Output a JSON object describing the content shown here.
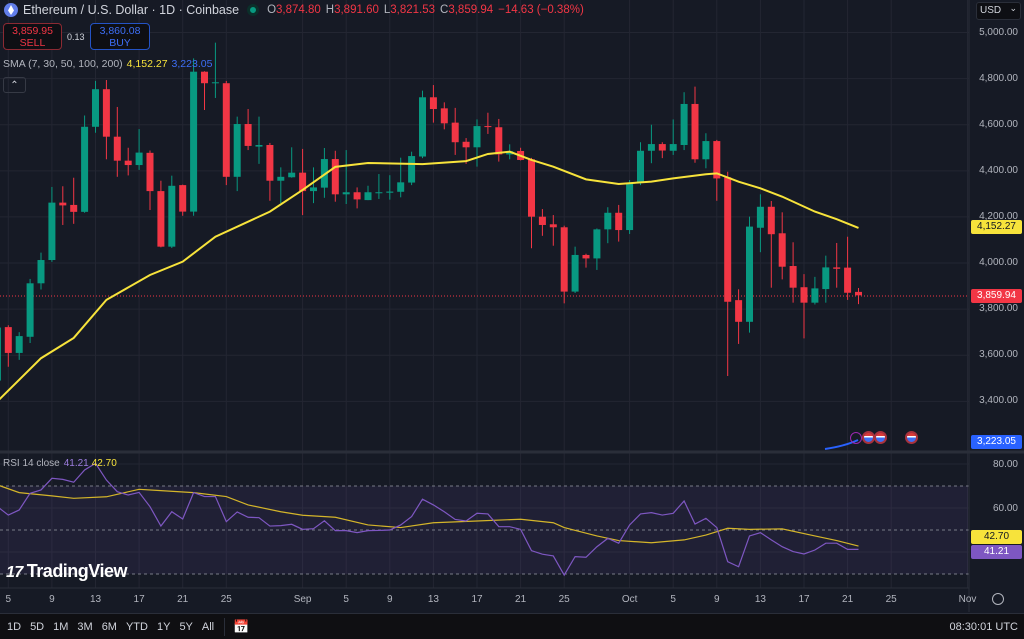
{
  "header": {
    "title": "Ethereum / U.S. Dollar · 1D · Coinbase",
    "open_label": "O",
    "open": "3,874.80",
    "high_label": "H",
    "high": "3,891.60",
    "low_label": "L",
    "low": "3,821.53",
    "close_label": "C",
    "close": "3,859.94",
    "change": "−14.63 (−0.38%)"
  },
  "trade": {
    "sell_price": "3,859.95",
    "sell_label": "SELL",
    "spread": "0.13",
    "buy_price": "3,860.08",
    "buy_label": "BUY"
  },
  "sma_legend": {
    "label": "SMA (7, 30, 50, 100, 200)",
    "value1": "4,152.27",
    "value2": "3,223.05"
  },
  "rsi_legend": {
    "label": "RSI 14 close",
    "rsi": "41.21",
    "ma": "42.70"
  },
  "currency": "USD",
  "price_axis": [
    "5,000.00",
    "4,800.00",
    "4,600.00",
    "4,400.00",
    "4,200.00",
    "4,000.00",
    "3,800.00",
    "3,600.00",
    "3,400.00"
  ],
  "price_tags": {
    "sma": "4,152.27",
    "last": "3,859.94",
    "sma200": "3,223.05"
  },
  "rsi_axis": [
    "80.00",
    "60.00"
  ],
  "rsi_tags": {
    "ma": "42.70",
    "rsi": "41.21"
  },
  "watermark": "TradingView",
  "toolbar": {
    "ranges": [
      "1D",
      "5D",
      "1M",
      "3M",
      "6M",
      "YTD",
      "1Y",
      "5Y",
      "All"
    ],
    "time": "08:30:01 UTC"
  },
  "colors": {
    "up": "#089981",
    "down": "#f23645",
    "sma": "#f7e33b",
    "sma200": "#2962ff",
    "rsi": "#7e57c2",
    "rsi_ma": "#d4b52a"
  },
  "chart_data": [
    {
      "type": "candlestick",
      "ylim": [
        3300,
        5050
      ],
      "time_labels": [
        [
          "5",
          "Aug 5"
        ],
        [
          "9",
          "Aug 9"
        ],
        [
          "13",
          "Aug 13"
        ],
        [
          "17",
          "Aug 17"
        ],
        [
          "21",
          "Aug 21"
        ],
        [
          "25",
          "Aug 25"
        ],
        [
          "Sep",
          "Sep 1"
        ],
        [
          "5",
          "Sep 5"
        ],
        [
          "9",
          "Sep 9"
        ],
        [
          "13",
          "Sep 13"
        ],
        [
          "17",
          "Sep 17"
        ],
        [
          "21",
          "Sep 21"
        ],
        [
          "25",
          "Sep 25"
        ],
        [
          "Oct",
          "Oct 1"
        ],
        [
          "5",
          "Oct 5"
        ],
        [
          "9",
          "Oct 9"
        ],
        [
          "13",
          "Oct 13"
        ],
        [
          "17",
          "Oct 17"
        ],
        [
          "21",
          "Oct 21"
        ],
        [
          "25",
          "Oct 25"
        ],
        [
          "Nov",
          "Nov 1"
        ]
      ],
      "candles": [
        [
          "Aug 4",
          3490,
          3725,
          3480,
          3720
        ],
        [
          "Aug 5",
          3722,
          3730,
          3550,
          3610
        ],
        [
          "Aug 6",
          3610,
          3700,
          3580,
          3683
        ],
        [
          "Aug 7",
          3680,
          3931,
          3653,
          3912
        ],
        [
          "Aug 8",
          3912,
          4045,
          3885,
          4013
        ],
        [
          "Aug 9",
          4013,
          4330,
          4005,
          4262
        ],
        [
          "Aug 10",
          4262,
          4333,
          4165,
          4250
        ],
        [
          "Aug 11",
          4252,
          4370,
          4170,
          4222
        ],
        [
          "Aug 12",
          4222,
          4640,
          4218,
          4591
        ],
        [
          "Aug 13",
          4591,
          4790,
          4565,
          4754
        ],
        [
          "Aug 14",
          4754,
          4794,
          4450,
          4548
        ],
        [
          "Aug 15",
          4548,
          4677,
          4374,
          4444
        ],
        [
          "Aug 16",
          4444,
          4500,
          4380,
          4425
        ],
        [
          "Aug 17",
          4425,
          4581,
          4404,
          4479
        ],
        [
          "Aug 18",
          4478,
          4488,
          4230,
          4312
        ],
        [
          "Aug 19",
          4312,
          4357,
          4068,
          4071
        ],
        [
          "Aug 20",
          4071,
          4379,
          4065,
          4335
        ],
        [
          "Aug 21",
          4338,
          4340,
          4205,
          4223
        ],
        [
          "Aug 22",
          4223,
          4888,
          4205,
          4830
        ],
        [
          "Aug 23",
          4830,
          4832,
          4664,
          4780
        ],
        [
          "Aug 24",
          4780,
          4956,
          4716,
          4784
        ],
        [
          "Aug 25",
          4780,
          4790,
          4338,
          4374
        ],
        [
          "Aug 26",
          4374,
          4635,
          4312,
          4603
        ],
        [
          "Aug 27",
          4603,
          4668,
          4490,
          4508
        ],
        [
          "Aug 28",
          4505,
          4635,
          4430,
          4512
        ],
        [
          "Aug 29",
          4512,
          4521,
          4270,
          4357
        ],
        [
          "Aug 30",
          4357,
          4415,
          4260,
          4374
        ],
        [
          "Aug 31",
          4372,
          4502,
          4370,
          4392
        ],
        [
          "Sep 1",
          4392,
          4495,
          4208,
          4312
        ],
        [
          "Sep 2",
          4312,
          4415,
          4260,
          4328
        ],
        [
          "Sep 3",
          4327,
          4499,
          4283,
          4451
        ],
        [
          "Sep 4",
          4451,
          4487,
          4266,
          4298
        ],
        [
          "Sep 5",
          4298,
          4490,
          4256,
          4307
        ],
        [
          "Sep 6",
          4307,
          4328,
          4237,
          4276
        ],
        [
          "Sep 7",
          4273,
          4335,
          4273,
          4307
        ],
        [
          "Sep 8",
          4303,
          4386,
          4278,
          4307
        ],
        [
          "Sep 9",
          4305,
          4381,
          4275,
          4310
        ],
        [
          "Sep 10",
          4309,
          4457,
          4285,
          4350
        ],
        [
          "Sep 11",
          4349,
          4483,
          4338,
          4464
        ],
        [
          "Sep 12",
          4462,
          4748,
          4455,
          4719
        ],
        [
          "Sep 13",
          4719,
          4772,
          4609,
          4668
        ],
        [
          "Sep 14",
          4671,
          4697,
          4580,
          4606
        ],
        [
          "Sep 15",
          4609,
          4673,
          4469,
          4524
        ],
        [
          "Sep 16",
          4526,
          4542,
          4430,
          4502
        ],
        [
          "Sep 17",
          4502,
          4623,
          4418,
          4594
        ],
        [
          "Sep 18",
          4594,
          4652,
          4560,
          4590
        ],
        [
          "Sep 19",
          4589,
          4625,
          4440,
          4471
        ],
        [
          "Sep 20",
          4471,
          4515,
          4450,
          4485
        ],
        [
          "Sep 21",
          4486,
          4500,
          4445,
          4447
        ],
        [
          "Sep 22",
          4450,
          4456,
          4064,
          4201
        ],
        [
          "Sep 23",
          4201,
          4234,
          4118,
          4165
        ],
        [
          "Sep 24",
          4168,
          4208,
          4075,
          4155
        ],
        [
          "Sep 25",
          4155,
          4162,
          3825,
          3876
        ],
        [
          "Sep 26",
          3876,
          4071,
          3870,
          4035
        ],
        [
          "Sep 27",
          4035,
          4040,
          3980,
          4020
        ],
        [
          "Sep 28",
          4020,
          4150,
          3970,
          4146
        ],
        [
          "Sep 29",
          4146,
          4242,
          4086,
          4218
        ],
        [
          "Sep 30",
          4218,
          4252,
          4093,
          4143
        ],
        [
          "Oct 1",
          4143,
          4360,
          4126,
          4348
        ],
        [
          "Oct 2",
          4348,
          4524,
          4338,
          4487
        ],
        [
          "Oct 3",
          4487,
          4600,
          4433,
          4516
        ],
        [
          "Oct 4",
          4516,
          4524,
          4455,
          4488
        ],
        [
          "Oct 5",
          4487,
          4623,
          4469,
          4516
        ],
        [
          "Oct 6",
          4512,
          4741,
          4490,
          4690
        ],
        [
          "Oct 7",
          4690,
          4765,
          4435,
          4450
        ],
        [
          "Oct 8",
          4450,
          4563,
          4411,
          4529
        ],
        [
          "Oct 9",
          4529,
          4534,
          4270,
          4367
        ],
        [
          "Oct 10",
          4372,
          4396,
          3510,
          3832
        ],
        [
          "Oct 11",
          3839,
          3886,
          3649,
          3745
        ],
        [
          "Oct 12",
          3745,
          4201,
          3698,
          4158
        ],
        [
          "Oct 13",
          4153,
          4298,
          4047,
          4244
        ],
        [
          "Oct 14",
          4244,
          4269,
          3893,
          4125
        ],
        [
          "Oct 15",
          4129,
          4220,
          3929,
          3984
        ],
        [
          "Oct 16",
          3987,
          4090,
          3828,
          3893
        ],
        [
          "Oct 17",
          3895,
          3952,
          3673,
          3828
        ],
        [
          "Oct 18",
          3828,
          3940,
          3820,
          3890
        ],
        [
          "Oct 19",
          3887,
          4032,
          3828,
          3981
        ],
        [
          "Oct 20",
          3981,
          4087,
          3893,
          3975
        ],
        [
          "Oct 21",
          3980,
          4114,
          3840,
          3871
        ],
        [
          "Oct 22",
          3874.8,
          3891.6,
          3821.53,
          3859.94
        ]
      ],
      "sma": [
        [
          "Aug 4",
          3400
        ],
        [
          "Aug 8",
          3587
        ],
        [
          "Aug 11",
          3675
        ],
        [
          "Aug 14",
          3840
        ],
        [
          "Aug 18",
          3948
        ],
        [
          "Aug 21",
          4006
        ],
        [
          "Aug 24",
          4114
        ],
        [
          "Aug 29",
          4223
        ],
        [
          "Sep 1",
          4317
        ],
        [
          "Sep 4",
          4417
        ],
        [
          "Sep 7",
          4434
        ],
        [
          "Sep 12",
          4429
        ],
        [
          "Sep 16",
          4442
        ],
        [
          "Sep 18",
          4473
        ],
        [
          "Sep 20",
          4483
        ],
        [
          "Sep 22",
          4447
        ],
        [
          "Sep 24",
          4418
        ],
        [
          "Sep 27",
          4363
        ],
        [
          "Sep 30",
          4343
        ],
        [
          "Oct 3",
          4353
        ],
        [
          "Oct 5",
          4367
        ],
        [
          "Oct 8",
          4385
        ],
        [
          "Oct 9",
          4389
        ],
        [
          "Oct 11",
          4353
        ],
        [
          "Oct 13",
          4324
        ],
        [
          "Oct 15",
          4288
        ],
        [
          "Oct 18",
          4223
        ],
        [
          "Oct 20",
          4190
        ],
        [
          "Oct 22",
          4152.27
        ]
      ]
    },
    {
      "type": "line",
      "ylim": [
        20,
        85
      ],
      "levels": [
        70,
        50,
        30
      ],
      "rsi": [
        60.6,
        56.8,
        59.1,
        66.7,
        68.2,
        73.5,
        73.0,
        71.7,
        77.3,
        80.3,
        72.7,
        67.4,
        65.9,
        67.1,
        60.6,
        51.8,
        58.3,
        55.0,
        67.0,
        65.2,
        65.2,
        53.8,
        58.2,
        55.8,
        55.6,
        51.8,
        52.0,
        52.6,
        50.3,
        50.6,
        54.2,
        49.7,
        49.7,
        48.8,
        49.7,
        49.8,
        50.0,
        52.3,
        56.1,
        64.0,
        61.4,
        58.3,
        54.8,
        54.1,
        57.6,
        57.3,
        51.5,
        51.5,
        50.3,
        40.6,
        39.0,
        38.2,
        29.5,
        37.9,
        37.6,
        42.4,
        46.2,
        44.0,
        52.3,
        57.3,
        57.9,
        56.8,
        57.6,
        63.2,
        52.7,
        55.3,
        51.1,
        35.6,
        33.3,
        47.3,
        48.8,
        45.5,
        42.4,
        40.2,
        39.1,
        40.9,
        44.0,
        44.0,
        41.2,
        41.21
      ],
      "rsi_start": "Aug 4",
      "rsi_ma": [
        [
          "Aug 4",
          70.5
        ],
        [
          "Aug 6",
          67.0
        ],
        [
          "Aug 9",
          65.5
        ],
        [
          "Aug 11",
          64.4
        ],
        [
          "Aug 14",
          65.1
        ],
        [
          "Aug 17",
          68.5
        ],
        [
          "Aug 19",
          67.9
        ],
        [
          "Aug 22",
          67.0
        ],
        [
          "Aug 25",
          65.2
        ],
        [
          "Aug 27",
          61.4
        ],
        [
          "Aug 30",
          58.3
        ],
        [
          "Sep 1",
          56.7
        ],
        [
          "Sep 4",
          55.8
        ],
        [
          "Sep 7",
          52.3
        ],
        [
          "Sep 10",
          51.1
        ],
        [
          "Sep 13",
          53.3
        ],
        [
          "Sep 17",
          54.1
        ],
        [
          "Sep 21",
          54.9
        ],
        [
          "Sep 24",
          53.3
        ],
        [
          "Sep 25",
          51.1
        ],
        [
          "Sep 28",
          47.3
        ],
        [
          "Sep 30",
          45.2
        ],
        [
          "Oct 3",
          44.2
        ],
        [
          "Oct 6",
          45.5
        ],
        [
          "Oct 8",
          47.7
        ],
        [
          "Oct 10",
          50.8
        ],
        [
          "Oct 12",
          50.3
        ],
        [
          "Oct 15",
          50.5
        ],
        [
          "Oct 18",
          47.3
        ],
        [
          "Oct 20",
          45.2
        ],
        [
          "Oct 22",
          42.7
        ]
      ]
    }
  ]
}
